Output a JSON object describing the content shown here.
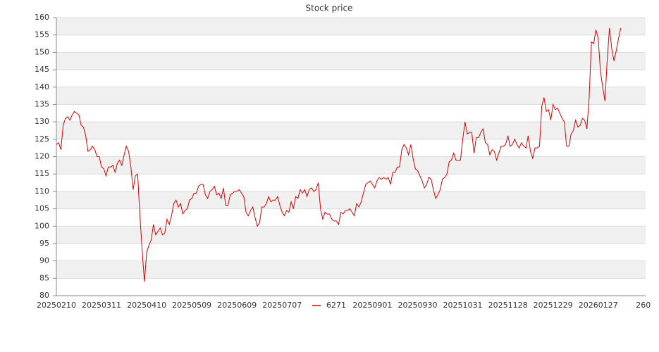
{
  "chart_data": {
    "type": "line",
    "title": "Stock price",
    "categories": [
      "20250210",
      null,
      null,
      null,
      null,
      null,
      null,
      null,
      null,
      null,
      null,
      null,
      null,
      null,
      null,
      null,
      null,
      null,
      null,
      null,
      "20250311",
      null,
      null,
      null,
      null,
      null,
      null,
      null,
      null,
      null,
      null,
      null,
      null,
      null,
      null,
      null,
      null,
      null,
      null,
      null,
      "20250410",
      null,
      null,
      null,
      null,
      null,
      null,
      null,
      null,
      null,
      null,
      null,
      null,
      null,
      null,
      null,
      null,
      null,
      null,
      null,
      "20250509",
      null,
      null,
      null,
      null,
      null,
      null,
      null,
      null,
      null,
      null,
      null,
      null,
      null,
      null,
      null,
      null,
      null,
      null,
      null,
      "20250609",
      null,
      null,
      null,
      null,
      null,
      null,
      null,
      null,
      null,
      null,
      null,
      null,
      null,
      null,
      null,
      null,
      null,
      null,
      null,
      "20250707",
      null,
      null,
      null,
      null,
      null,
      null,
      null,
      null,
      null,
      null,
      null,
      null,
      null,
      null,
      null,
      null,
      null,
      null,
      null,
      null,
      null,
      null,
      null,
      null,
      null,
      null,
      null,
      null,
      null,
      null,
      null,
      null,
      null,
      null,
      null,
      null,
      null,
      null,
      null,
      "20250901",
      null,
      null,
      null,
      null,
      null,
      null,
      null,
      null,
      null,
      null,
      null,
      null,
      null,
      null,
      null,
      null,
      null,
      null,
      null,
      "20250930",
      null,
      null,
      null,
      null,
      null,
      null,
      null,
      null,
      null,
      null,
      null,
      null,
      null,
      null,
      null,
      null,
      null,
      null,
      null,
      "20251031",
      null,
      null,
      null,
      null,
      null,
      null,
      null,
      null,
      null,
      null,
      null,
      null,
      null,
      null,
      null,
      null,
      null,
      null,
      null,
      "20251128",
      null,
      null,
      null,
      null,
      null,
      null,
      null,
      null,
      null,
      null,
      null,
      null,
      null,
      null,
      null,
      null,
      null,
      null,
      null,
      "20251229",
      null,
      null,
      null,
      null,
      null,
      null,
      null,
      null,
      null,
      null,
      null,
      null,
      null,
      null,
      null,
      null,
      null,
      null,
      null,
      "20260127",
      null,
      null,
      null,
      null,
      null,
      null,
      null,
      null,
      null,
      null,
      null,
      null,
      null,
      null,
      null,
      null,
      null,
      null,
      null,
      "260",
      null
    ],
    "series": [
      {
        "name": "6271",
        "color": "#dd0000",
        "values": [
          123.5,
          124,
          122,
          129,
          131,
          131.5,
          130.5,
          132,
          133,
          132.5,
          132,
          129,
          128.5,
          126,
          121.5,
          122,
          123,
          122,
          120,
          120,
          117,
          116.5,
          114.5,
          117,
          117,
          117.5,
          115.5,
          118,
          119,
          117.5,
          120.5,
          123,
          121.5,
          117,
          110.5,
          114.5,
          115,
          103,
          93,
          84,
          92.5,
          94.5,
          96,
          100.5,
          97.5,
          98.5,
          99.5,
          97.5,
          98,
          102,
          100.5,
          103,
          106.5,
          107.5,
          105.5,
          106.5,
          103.5,
          104.5,
          105,
          107.5,
          108,
          109.5,
          109.5,
          111.5,
          112,
          112,
          109,
          108,
          110,
          110.5,
          111.5,
          109,
          109.5,
          108,
          111,
          106,
          106,
          109,
          109.5,
          110,
          110,
          110.5,
          109.5,
          108.5,
          104,
          103,
          104.5,
          105.5,
          102.5,
          100,
          101,
          105.5,
          105.5,
          106.5,
          108.5,
          107,
          107.5,
          107.5,
          108.5,
          106,
          104,
          103,
          104.5,
          104,
          107,
          105,
          108.5,
          108,
          110.5,
          109.5,
          110.5,
          108.5,
          110.5,
          111,
          110,
          110.5,
          112.5,
          105,
          102,
          104,
          103.5,
          103.5,
          102,
          101.5,
          101.5,
          100.5,
          104,
          103.5,
          104.5,
          104.5,
          105,
          104,
          103,
          106.5,
          105.5,
          107,
          109.5,
          112,
          112.5,
          113,
          112,
          111,
          113,
          114,
          113.5,
          114,
          113.5,
          114,
          112,
          115.5,
          115.5,
          117,
          117,
          122,
          123.5,
          122.5,
          120.5,
          123.5,
          119.5,
          116.5,
          116,
          114.5,
          113,
          111,
          112,
          114,
          113.5,
          110.5,
          108,
          109,
          110.5,
          113.5,
          114,
          115,
          118.5,
          119,
          121,
          119,
          119,
          119,
          125,
          130,
          126.5,
          127,
          127,
          121,
          125.5,
          125.5,
          127,
          128,
          124,
          123.5,
          120.5,
          122,
          121.5,
          119,
          121,
          123,
          123,
          123.5,
          126,
          123,
          123.5,
          125,
          123.5,
          122.5,
          124,
          123,
          122.5,
          126,
          121.5,
          119.5,
          122.5,
          122.5,
          123,
          134.5,
          137,
          133,
          133.5,
          130.5,
          135,
          133.5,
          134,
          132.5,
          131,
          130,
          123,
          123,
          126.5,
          127.5,
          130.5,
          128.5,
          129,
          131,
          130.5,
          128,
          137,
          153,
          152.5,
          156.5,
          154,
          144.5,
          140,
          136,
          148,
          157,
          151,
          147.5,
          150.5,
          154,
          157,
          null,
          null,
          null,
          null,
          null,
          null,
          null,
          null,
          null,
          null,
          null
        ]
      }
    ],
    "ylim": [
      80,
      160
    ],
    "yticks": [
      80,
      85,
      90,
      95,
      100,
      105,
      110,
      115,
      120,
      125,
      130,
      135,
      140,
      145,
      150,
      155,
      160
    ],
    "grid": true,
    "legend": "bottom"
  }
}
